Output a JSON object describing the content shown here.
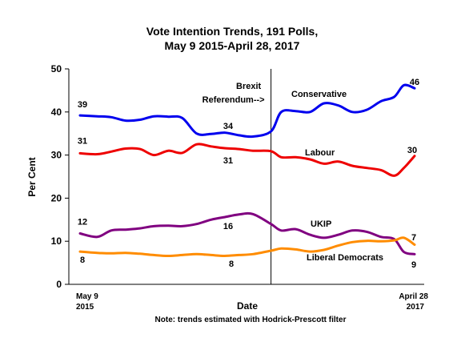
{
  "chart_data": {
    "type": "line",
    "title": [
      "Vote Intention Trends, 191 Polls,",
      "May 9 2015-April 28, 2017"
    ],
    "xlabel": "Date",
    "ylabel": "Per Cent",
    "note": "Note: trends estimated with Hodrick-Prescott filter",
    "ylim": [
      0,
      50
    ],
    "yticks": [
      0,
      10,
      20,
      30,
      40,
      50
    ],
    "x_start_label": [
      "May 9",
      "2015"
    ],
    "x_end_label": [
      "April 28",
      "2017"
    ],
    "x": [
      "2015-05-09",
      "2015-06-15",
      "2015-07-15",
      "2015-08-15",
      "2015-09-15",
      "2015-10-15",
      "2015-11-15",
      "2015-12-15",
      "2016-01-15",
      "2016-02-15",
      "2016-03-15",
      "2016-04-15",
      "2016-05-15",
      "2016-06-23",
      "2016-07-15",
      "2016-08-15",
      "2016-09-15",
      "2016-10-15",
      "2016-11-15",
      "2016-12-15",
      "2017-01-15",
      "2017-02-15",
      "2017-03-15",
      "2017-04-05",
      "2017-04-28"
    ],
    "event": {
      "label": [
        "Brexit",
        "Referendum-->"
      ],
      "date": "2016-06-23"
    },
    "series": [
      {
        "name": "Conservative",
        "color": "#0000ee",
        "start_label": "39",
        "mid_label": "34",
        "end_label": "46",
        "values": [
          39.2,
          39.0,
          38.8,
          38.0,
          38.2,
          39.0,
          38.9,
          38.6,
          35.0,
          34.9,
          35.2,
          34.6,
          34.3,
          35.5,
          40.0,
          40.2,
          40.0,
          42.0,
          41.5,
          40.0,
          40.5,
          42.5,
          43.5,
          46.2,
          45.5
        ]
      },
      {
        "name": "Labour",
        "color": "#ee0000",
        "start_label": "31",
        "mid_label": "31",
        "end_label": "30",
        "values": [
          30.4,
          30.2,
          30.8,
          31.5,
          31.4,
          30.0,
          31.0,
          30.5,
          32.5,
          32.0,
          31.6,
          31.4,
          31.0,
          30.9,
          29.5,
          29.5,
          29.0,
          28.0,
          28.5,
          27.5,
          27.0,
          26.5,
          25.2,
          27.0,
          29.8
        ]
      },
      {
        "name": "UKIP",
        "color": "#800080",
        "start_label": "12",
        "mid_label": "16",
        "end_label": "7",
        "values": [
          11.8,
          11.0,
          12.5,
          12.7,
          13.0,
          13.5,
          13.6,
          13.5,
          14.0,
          15.0,
          15.6,
          16.2,
          16.3,
          14.0,
          12.5,
          12.8,
          11.5,
          10.8,
          11.5,
          12.5,
          12.2,
          11.0,
          10.5,
          7.5,
          7.0
        ]
      },
      {
        "name": "Liberal Democrats",
        "color": "#ff8c00",
        "start_label": "8",
        "mid_label": "8",
        "end_label": "9",
        "values": [
          7.6,
          7.3,
          7.2,
          7.3,
          7.1,
          6.8,
          6.6,
          6.8,
          7.0,
          6.8,
          6.6,
          6.8,
          7.0,
          7.8,
          8.3,
          8.1,
          7.6,
          8.0,
          9.0,
          9.8,
          10.1,
          10.0,
          10.2,
          10.8,
          9.2
        ]
      }
    ]
  }
}
